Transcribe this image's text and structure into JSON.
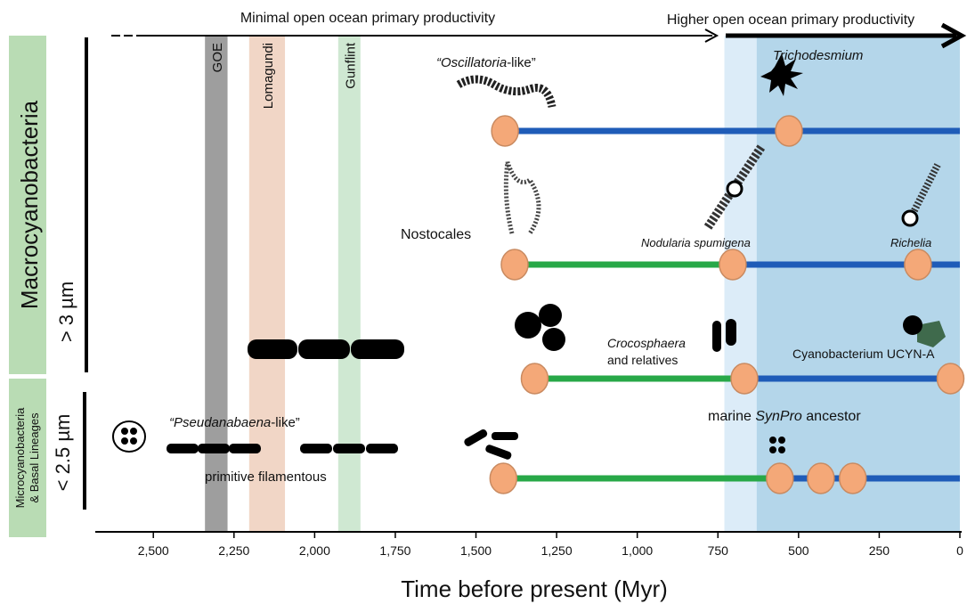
{
  "header": {
    "left_arrow": "Minimal open ocean primary productivity",
    "right_arrow": "Higher open ocean primary productivity"
  },
  "groups": [
    {
      "label": [
        "Macrocyanobacteria"
      ],
      "size": "> 3 µm"
    },
    {
      "label": [
        "Microcyanobacteria",
        "& Basal Lineages"
      ],
      "size": "< 2.5 µm"
    }
  ],
  "time_axis": {
    "title": "Time before present (Myr)",
    "xlim": [
      2680,
      0
    ],
    "xticks": [
      {
        "value": 2500,
        "label": "2,500"
      },
      {
        "value": 2250,
        "label": "2,250"
      },
      {
        "value": 2000,
        "label": "2,000"
      },
      {
        "value": 1750,
        "label": "1,750"
      },
      {
        "value": 1500,
        "label": "1,500"
      },
      {
        "value": 1250,
        "label": "1,250"
      },
      {
        "value": 1000,
        "label": "1,000"
      },
      750,
      500,
      250,
      0
    ]
  },
  "shading": [
    {
      "start": 730,
      "end": 630,
      "color": "#dcecf8"
    },
    {
      "start": 630,
      "end": 0,
      "color": "#b4d6ea"
    }
  ],
  "periods": [
    {
      "label": "GOE",
      "start": 2340,
      "end": 2270,
      "color": "#9e9e9e"
    },
    {
      "label": "Lomagundi",
      "start": 2203,
      "end": 2092,
      "color": "#f1d6c6"
    },
    {
      "label": "Gunflint",
      "start": 1927,
      "end": 1858,
      "color": "#cfe8d2"
    }
  ],
  "node_color": "#f4a878",
  "lineages": [
    {
      "segments": [
        {
          "start": 1410,
          "end": 0,
          "color": "#1f5cb8"
        }
      ],
      "nodes": [
        1410,
        530
      ]
    },
    {
      "segments": [
        {
          "start": 1380,
          "end": 704,
          "color": "#28a848"
        },
        {
          "start": 704,
          "end": 0,
          "color": "#1f5cb8"
        }
      ],
      "nodes": [
        1380,
        704,
        130
      ]
    },
    {
      "segments": [
        {
          "start": 1318,
          "end": 668,
          "color": "#28a848"
        },
        {
          "start": 668,
          "end": 0,
          "color": "#1f5cb8"
        }
      ],
      "nodes": [
        1318,
        668,
        29
      ]
    },
    {
      "segments": [
        {
          "start": 1415,
          "end": 558,
          "color": "#28a848"
        },
        {
          "start": 558,
          "end": 0,
          "color": "#1f5cb8"
        }
      ],
      "nodes": [
        1415,
        558,
        431,
        332
      ]
    }
  ],
  "labels": {
    "oscillatoria": [
      "“",
      "Oscillatoria",
      "-like”"
    ],
    "trichodesmium": "Trichodesmium",
    "nostocales": "Nostocales",
    "nodularia": "Nodularia spumigena",
    "richelia": "Richelia",
    "crocosphaera": [
      "Crocosphaera",
      "and relatives"
    ],
    "ucyn": "Cyanobacterium UCYN-A",
    "synpro": [
      "marine ",
      "SynPro",
      " ancestor"
    ],
    "pseudanabaena": [
      "“",
      "Pseudanabaena",
      "-like”"
    ],
    "primitive": "primitive filamentous"
  }
}
